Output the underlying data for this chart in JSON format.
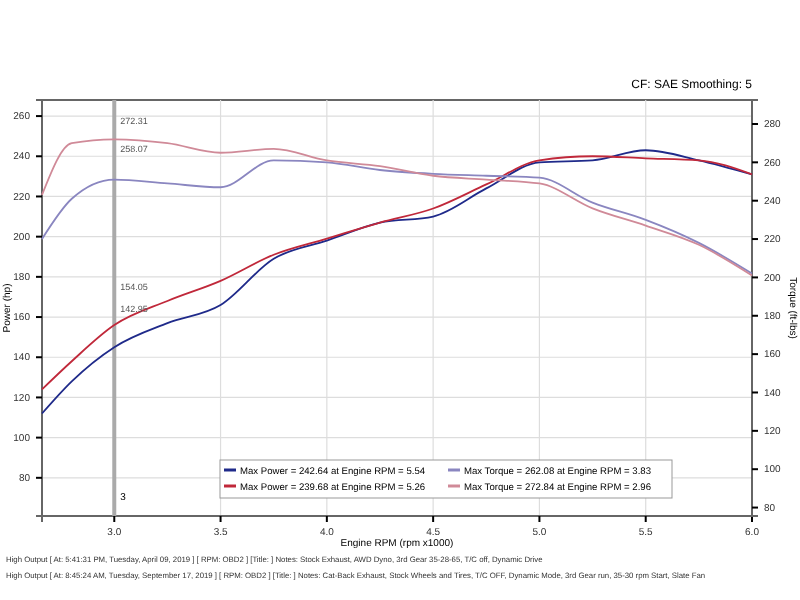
{
  "chart_data": {
    "type": "line",
    "subtitle": "CF: SAE Smoothing: 5",
    "xlabel": "Engine RPM (rpm x1000)",
    "ylabel": "Power (hp)",
    "y2label": "Torque (ft-lbs)",
    "x": [
      2.66,
      2.8,
      3.0,
      3.25,
      3.5,
      3.75,
      4.0,
      4.25,
      4.5,
      4.75,
      5.0,
      5.25,
      5.5,
      5.75,
      6.0
    ],
    "series": [
      {
        "name": "Max Power = 242.64 at Engine RPM = 5.54",
        "color": "#1f2a8a",
        "values": [
          112,
          128,
          145,
          157,
          166,
          189,
          198,
          207,
          210,
          224,
          237,
          238,
          243,
          238,
          231
        ]
      },
      {
        "name": "Max Power = 239.68 at Engine RPM = 5.26",
        "color": "#c0283a",
        "values": [
          124,
          138,
          156,
          168,
          178,
          191,
          199,
          207,
          214,
          226,
          238,
          240,
          239,
          238,
          231
        ]
      },
      {
        "name": "Max Torque = 262.08 at Engine RPM = 3.83",
        "color": "#8a86c0",
        "axis": "y2",
        "values": [
          220,
          241,
          251,
          249,
          247,
          261,
          260,
          256,
          254,
          253,
          252,
          239,
          230,
          218,
          202
        ]
      },
      {
        "name": "Max Torque = 272.84 at Engine RPM = 2.96",
        "color": "#d08a98",
        "axis": "y2",
        "values": [
          243,
          270,
          272,
          270,
          265,
          267,
          261,
          258,
          253,
          251,
          249,
          236,
          227,
          217,
          201
        ]
      }
    ],
    "xlim": [
      2.66,
      6.0
    ],
    "xticks": [
      {
        "value": 3,
        "label": "3.0"
      },
      3.5,
      {
        "value": 4,
        "label": "4.0"
      },
      4.5,
      {
        "value": 5,
        "label": "5.0"
      },
      5.5,
      {
        "value": 6,
        "label": "6.0"
      }
    ],
    "ylim": [
      61,
      268
    ],
    "yticks": [
      80,
      100,
      120,
      140,
      160,
      180,
      200,
      220,
      240,
      260
    ],
    "y2lim": [
      75.6,
      292.5
    ],
    "y2ticks": [
      80,
      100,
      120,
      140,
      160,
      180,
      200,
      220,
      240,
      260,
      280
    ],
    "grid": true,
    "legend": "bottom",
    "ref_lines": [
      {
        "axis": "x",
        "value": 3,
        "label": "3"
      }
    ],
    "annotations": [
      "272.31",
      "258.07",
      "154.05",
      "142.95",
      "High Output [ At: 5:41:31 PM, Tuesday, April 09, 2019 ] [ RPM: OBD2 ] [Title: ] Notes: Stock Exhaust, AWD Dyno, 3rd Gear 35-28-65, T/C off, Dynamic Drive",
      "High Output [ At: 8:45:24 AM, Tuesday, September 17, 2019 ] [ RPM: OBD2 ] [Title: ] Notes: Cat-Back Exhaust, Stock Wheels and Tires, T/C OFF, Dynamic Mode, 3rd Gear run, 35-30 rpm Start, Slate Fan"
    ]
  }
}
